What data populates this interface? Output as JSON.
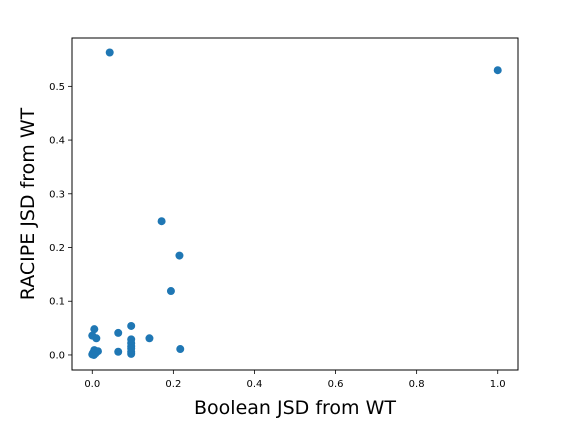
{
  "chart_data": {
    "type": "scatter",
    "title": "",
    "xlabel": "Boolean JSD from WT",
    "ylabel": "RACIPE JSD from WT",
    "xlim": [
      -0.05,
      1.05
    ],
    "ylim": [
      -0.028,
      0.59
    ],
    "xticks": [
      0.0,
      0.2,
      0.4,
      0.6,
      0.8,
      1.0
    ],
    "yticks": [
      0.0,
      0.1,
      0.2,
      0.3,
      0.4,
      0.5
    ],
    "xtick_labels": [
      "0.0",
      "0.2",
      "0.4",
      "0.6",
      "0.8",
      "1.0"
    ],
    "ytick_labels": [
      "0.0",
      "0.1",
      "0.2",
      "0.3",
      "0.4",
      "0.5"
    ],
    "grid": false,
    "marker_color": "#1f77b4",
    "points": [
      {
        "x": 0.043,
        "y": 0.563
      },
      {
        "x": 1.0,
        "y": 0.53
      },
      {
        "x": 0.171,
        "y": 0.249
      },
      {
        "x": 0.215,
        "y": 0.185
      },
      {
        "x": 0.194,
        "y": 0.119
      },
      {
        "x": 0.096,
        "y": 0.054
      },
      {
        "x": 0.005,
        "y": 0.048
      },
      {
        "x": 0.064,
        "y": 0.041
      },
      {
        "x": 0.0,
        "y": 0.036
      },
      {
        "x": 0.01,
        "y": 0.031
      },
      {
        "x": 0.141,
        "y": 0.031
      },
      {
        "x": 0.096,
        "y": 0.029
      },
      {
        "x": 0.096,
        "y": 0.022
      },
      {
        "x": 0.096,
        "y": 0.016
      },
      {
        "x": 0.096,
        "y": 0.012
      },
      {
        "x": 0.217,
        "y": 0.011
      },
      {
        "x": 0.005,
        "y": 0.009
      },
      {
        "x": 0.014,
        "y": 0.007
      },
      {
        "x": 0.064,
        "y": 0.006
      },
      {
        "x": 0.096,
        "y": 0.006
      },
      {
        "x": 0.002,
        "y": 0.004
      },
      {
        "x": 0.008,
        "y": 0.003
      },
      {
        "x": 0.096,
        "y": 0.002
      },
      {
        "x": 0.0,
        "y": 0.001
      },
      {
        "x": 0.004,
        "y": 0.0
      }
    ]
  }
}
